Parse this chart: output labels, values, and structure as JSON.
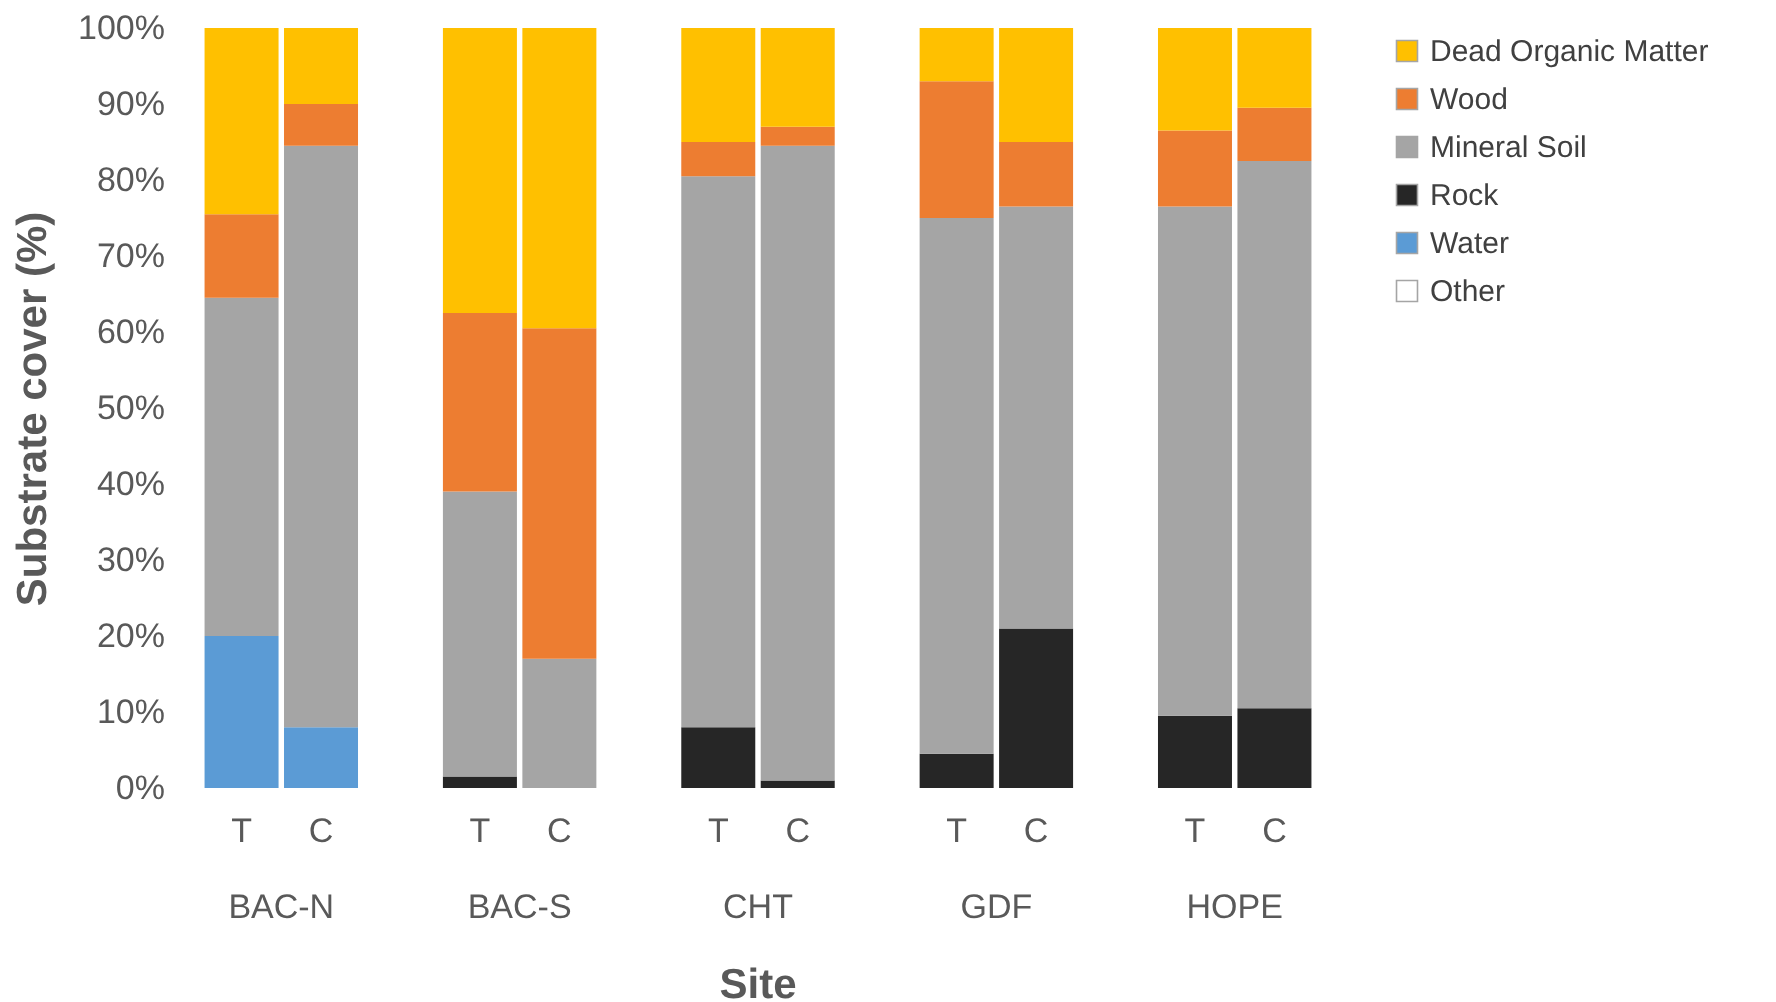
{
  "chart_data": {
    "type": "bar",
    "stacked": true,
    "xlabel": "Site",
    "ylabel": "Substrate cover (%)",
    "categories": [
      "T",
      "C",
      "T",
      "C",
      "T",
      "C",
      "T",
      "C",
      "T",
      "C"
    ],
    "annotations": [
      "BAC-N",
      "BAC-S",
      "CHT",
      "GDF",
      "HOPE"
    ],
    "series": [
      {
        "name": "Other",
        "color": "#ffffff",
        "values": [
          0,
          0,
          0,
          0,
          0,
          0,
          0,
          0,
          0,
          0
        ]
      },
      {
        "name": "Water",
        "color": "#5b9bd5",
        "values": [
          20,
          8,
          0,
          0,
          0,
          0,
          0,
          0,
          0,
          0
        ]
      },
      {
        "name": "Rock",
        "color": "#262626",
        "values": [
          0,
          0,
          1.5,
          0,
          8,
          1,
          4.5,
          21,
          9.5,
          10.5
        ]
      },
      {
        "name": "Mineral Soil",
        "color": "#a5a5a5",
        "values": [
          44.5,
          76.5,
          37.5,
          17,
          72.5,
          83.5,
          70.5,
          55.5,
          67,
          72
        ]
      },
      {
        "name": "Wood",
        "color": "#ed7d31",
        "values": [
          11,
          5.5,
          23.5,
          43.5,
          4.5,
          2.5,
          18,
          8.5,
          10,
          7
        ]
      },
      {
        "name": "Dead Organic Matter",
        "color": "#ffc000",
        "values": [
          24.5,
          10,
          37.5,
          39.5,
          15,
          13,
          7,
          15,
          13.5,
          10.5
        ]
      }
    ],
    "ylim": [
      0,
      100
    ],
    "yticks": [
      {
        "value": 0,
        "label": "0%"
      },
      {
        "value": 10,
        "label": "10%"
      },
      {
        "value": 20,
        "label": "20%"
      },
      {
        "value": 30,
        "label": "30%"
      },
      {
        "value": 40,
        "label": "40%"
      },
      {
        "value": 50,
        "label": "50%"
      },
      {
        "value": 60,
        "label": "60%"
      },
      {
        "value": 70,
        "label": "70%"
      },
      {
        "value": 80,
        "label": "80%"
      },
      {
        "value": 90,
        "label": "90%"
      },
      {
        "value": 100,
        "label": "100%"
      }
    ],
    "grid": false,
    "legend": "right"
  }
}
